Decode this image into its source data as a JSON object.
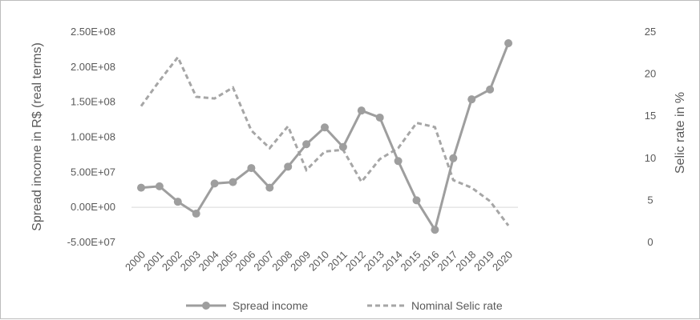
{
  "chart_data": {
    "type": "line",
    "categories": [
      "2000",
      "2001",
      "2002",
      "2003",
      "2004",
      "2005",
      "2006",
      "2007",
      "2008",
      "2009",
      "2010",
      "2011",
      "2012",
      "2013",
      "2014",
      "2015",
      "2016",
      "2017",
      "2018",
      "2019",
      "2020"
    ],
    "series": [
      {
        "name": "Spread income",
        "axis": "left",
        "style": "solid-with-markers",
        "color": "#9e9e9e",
        "values": [
          28000000,
          30000000,
          8000000,
          -9000000,
          34000000,
          36000000,
          56000000,
          28000000,
          58000000,
          90000000,
          114000000,
          86000000,
          138000000,
          128000000,
          66000000,
          10000000,
          -32000000,
          70000000,
          154000000,
          168000000,
          234000000
        ]
      },
      {
        "name": "Nominal Selic rate",
        "axis": "right",
        "style": "dashed",
        "color": "#a6a6a6",
        "values": [
          16.2,
          19.2,
          22.0,
          17.3,
          17.1,
          18.4,
          13.3,
          11.2,
          13.8,
          8.6,
          10.8,
          11.0,
          7.2,
          9.9,
          11.2,
          14.2,
          13.7,
          7.4,
          6.5,
          4.9,
          2.0
        ]
      }
    ],
    "ylabel": "Spread income in R$ (real terms)",
    "y2label": "Selic rate in %",
    "ylim": [
      -50000000,
      250000000
    ],
    "y2lim": [
      0,
      25
    ],
    "yticks": [
      "2.50E+08",
      "2.00E+08",
      "1.50E+08",
      "1.00E+08",
      "5.00E+07",
      "0.00E+00",
      "-5.00E+07"
    ],
    "y2ticks": [
      "25",
      "20",
      "15",
      "10",
      "5",
      "0"
    ],
    "legend_position": "bottom",
    "grid": false
  }
}
